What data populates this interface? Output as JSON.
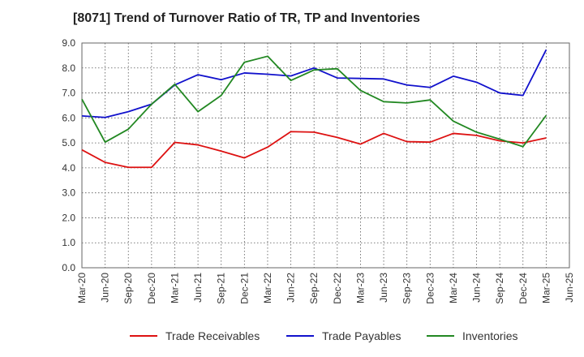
{
  "chart_data": {
    "type": "line",
    "title": "[8071]  Trend of Turnover Ratio of TR, TP and Inventories",
    "xlabel": "",
    "ylabel": "",
    "ylim": [
      0,
      9
    ],
    "yticks": [
      "0.0",
      "1.0",
      "2.0",
      "3.0",
      "4.0",
      "5.0",
      "6.0",
      "7.0",
      "8.0",
      "9.0"
    ],
    "categories": [
      "Mar-20",
      "Jun-20",
      "Sep-20",
      "Dec-20",
      "Mar-21",
      "Jun-21",
      "Sep-21",
      "Dec-21",
      "Mar-22",
      "Jun-22",
      "Sep-22",
      "Dec-22",
      "Mar-23",
      "Jun-23",
      "Sep-23",
      "Dec-23",
      "Mar-24",
      "Jun-24",
      "Sep-24",
      "Dec-24",
      "Mar-25",
      "Jun-25"
    ],
    "grid": true,
    "legend_position": "bottom",
    "series": [
      {
        "name": "Trade Receivables",
        "color": "#dd1111",
        "values": [
          4.72,
          4.22,
          4.02,
          4.02,
          5.02,
          4.92,
          4.67,
          4.4,
          4.83,
          5.45,
          5.43,
          5.22,
          4.95,
          5.38,
          5.05,
          5.03,
          5.38,
          5.3,
          5.08,
          5.0,
          5.2,
          null
        ]
      },
      {
        "name": "Trade Payables",
        "color": "#1111cc",
        "values": [
          6.08,
          6.02,
          6.25,
          6.55,
          7.32,
          7.73,
          7.53,
          7.8,
          7.75,
          7.68,
          8.0,
          7.6,
          7.58,
          7.56,
          7.32,
          7.22,
          7.67,
          7.43,
          7.0,
          6.9,
          8.73,
          null
        ]
      },
      {
        "name": "Inventories",
        "color": "#228822",
        "values": [
          6.75,
          5.03,
          5.55,
          6.55,
          7.35,
          6.25,
          6.9,
          8.23,
          8.47,
          7.5,
          7.92,
          7.97,
          7.1,
          6.65,
          6.6,
          6.72,
          5.87,
          5.43,
          5.15,
          4.85,
          6.1,
          null
        ]
      }
    ]
  }
}
